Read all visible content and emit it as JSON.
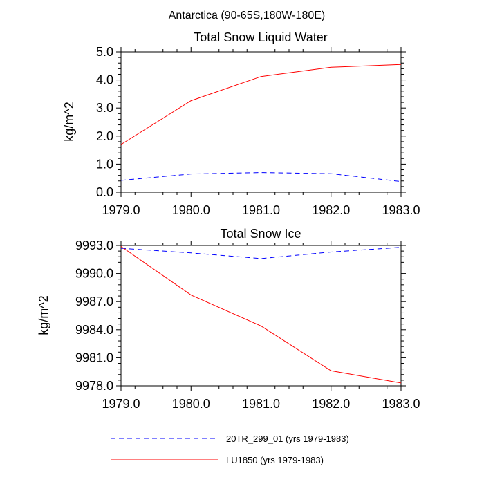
{
  "figure_title": "Antarctica (90-65S,180W-180E)",
  "chart_data": [
    {
      "type": "line",
      "title": "Total Snow Liquid Water",
      "xlabel": "",
      "ylabel": "kg/m^2",
      "x": [
        1979,
        1980,
        1981,
        1982,
        1983
      ],
      "xlim": [
        1979,
        1983
      ],
      "ylim": [
        0,
        5
      ],
      "xticks": [
        "1979.0",
        "1980.0",
        "1981.0",
        "1982.0",
        "1983.0"
      ],
      "yticks": [
        "0.0",
        "1.0",
        "2.0",
        "3.0",
        "4.0",
        "5.0"
      ],
      "series": [
        {
          "name": "20TR_299_01 (yrs 1979-1983)",
          "color": "#0000ff",
          "dash": "dashed",
          "values": [
            0.42,
            0.65,
            0.7,
            0.66,
            0.38
          ]
        },
        {
          "name": "LU1850 (yrs 1979-1983)",
          "color": "#ff0000",
          "dash": "solid",
          "values": [
            1.7,
            3.26,
            4.12,
            4.45,
            4.55
          ]
        }
      ]
    },
    {
      "type": "line",
      "title": "Total Snow Ice",
      "xlabel": "",
      "ylabel": "kg/m^2",
      "x": [
        1979,
        1980,
        1981,
        1982,
        1983
      ],
      "xlim": [
        1979,
        1983
      ],
      "ylim": [
        9978,
        9993
      ],
      "xticks": [
        "1979.0",
        "1980.0",
        "1981.0",
        "1982.0",
        "1983.0"
      ],
      "yticks": [
        "9978.0",
        "9981.0",
        "9984.0",
        "9987.0",
        "9990.0",
        "9993.0"
      ],
      "series": [
        {
          "name": "20TR_299_01 (yrs 1979-1983)",
          "color": "#0000ff",
          "dash": "dashed",
          "values": [
            9992.7,
            9992.2,
            9991.6,
            9992.3,
            9992.8
          ]
        },
        {
          "name": "LU1850 (yrs 1979-1983)",
          "color": "#ff0000",
          "dash": "solid",
          "values": [
            9992.9,
            9987.7,
            9984.4,
            9979.6,
            9978.3
          ]
        }
      ]
    }
  ],
  "legend": [
    {
      "label": "20TR_299_01 (yrs 1979-1983)",
      "color": "#0000ff",
      "dash": "dashed"
    },
    {
      "label": "LU1850 (yrs 1979-1983)",
      "color": "#ff0000",
      "dash": "solid"
    }
  ]
}
